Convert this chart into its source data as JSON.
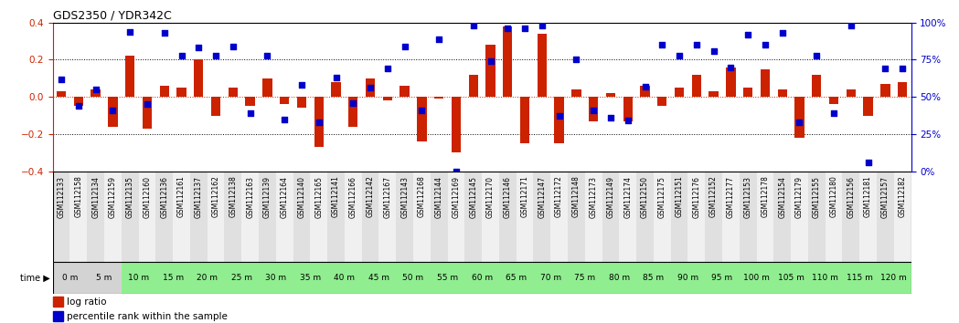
{
  "title": "GDS2350 / YDR342C",
  "categories": [
    "GSM112133",
    "GSM112158",
    "GSM112134",
    "GSM112159",
    "GSM112135",
    "GSM112160",
    "GSM112136",
    "GSM112161",
    "GSM112137",
    "GSM112162",
    "GSM112138",
    "GSM112163",
    "GSM112139",
    "GSM112164",
    "GSM112140",
    "GSM112165",
    "GSM112141",
    "GSM112166",
    "GSM112142",
    "GSM112167",
    "GSM112143",
    "GSM112168",
    "GSM112144",
    "GSM112169",
    "GSM112145",
    "GSM112170",
    "GSM112146",
    "GSM112171",
    "GSM112147",
    "GSM112172",
    "GSM112148",
    "GSM112173",
    "GSM112149",
    "GSM112174",
    "GSM112150",
    "GSM112175",
    "GSM112151",
    "GSM112176",
    "GSM112152",
    "GSM112177",
    "GSM112153",
    "GSM112178",
    "GSM112154",
    "GSM112179",
    "GSM112155",
    "GSM112180",
    "GSM112156",
    "GSM112181",
    "GSM112157",
    "GSM112182"
  ],
  "time_labels": [
    "0 m",
    "5 m",
    "10 m",
    "15 m",
    "20 m",
    "25 m",
    "30 m",
    "35 m",
    "40 m",
    "45 m",
    "50 m",
    "55 m",
    "60 m",
    "65 m",
    "70 m",
    "75 m",
    "80 m",
    "85 m",
    "90 m",
    "95 m",
    "100 m",
    "105 m",
    "110 m",
    "115 m",
    "120 m"
  ],
  "log_ratio": [
    0.03,
    -0.05,
    0.04,
    -0.16,
    0.22,
    -0.17,
    0.06,
    0.05,
    0.2,
    -0.1,
    0.05,
    -0.05,
    0.1,
    -0.04,
    -0.06,
    -0.27,
    0.08,
    -0.16,
    0.1,
    -0.02,
    0.06,
    -0.24,
    -0.01,
    -0.3,
    0.12,
    0.28,
    0.38,
    -0.25,
    0.34,
    -0.25,
    0.04,
    -0.13,
    0.02,
    -0.13,
    0.06,
    -0.05,
    0.05,
    0.12,
    0.03,
    0.16,
    0.05,
    0.15,
    0.04,
    -0.22,
    0.12,
    -0.04,
    0.04,
    -0.1,
    0.07,
    0.08
  ],
  "percentile_raw": [
    62,
    44,
    55,
    41,
    94,
    45,
    93,
    78,
    83,
    78,
    84,
    39,
    78,
    35,
    58,
    33,
    63,
    46,
    56,
    69,
    84,
    41,
    89,
    0,
    98,
    74,
    96,
    96,
    98,
    37,
    75,
    41,
    36,
    34,
    57,
    85,
    78,
    85,
    81,
    70,
    92,
    85,
    93,
    33,
    78,
    39,
    98,
    6,
    69,
    69
  ],
  "bar_color": "#cc2200",
  "dot_color": "#0000cc",
  "bg_color": "#ffffff",
  "ylim": [
    -0.4,
    0.4
  ],
  "yticks_left": [
    -0.4,
    -0.2,
    0.0,
    0.2,
    0.4
  ],
  "yticks_right": [
    0,
    25,
    50,
    75,
    100
  ],
  "hlines_dotted": [
    0.2,
    -0.2
  ],
  "hline_zero_color": "#cc2200",
  "time_bg_color": "#90ee90",
  "time_bg_gray": "#d3d3d3",
  "right_axis_color": "#0000cc",
  "gsm_col_even": "#e0e0e0",
  "gsm_col_odd": "#f0f0f0"
}
